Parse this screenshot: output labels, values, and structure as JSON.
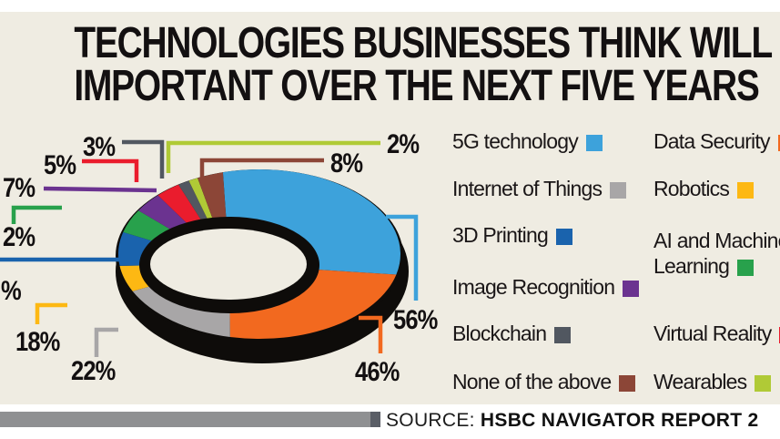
{
  "title": {
    "line1": "TECHNOLOGIES BUSINESSES THINK WILL BE",
    "line2": "IMPORTANT OVER THE NEXT FIVE YEARS"
  },
  "source": {
    "prefix": "SOURCE:",
    "report": "HSBC NAVIGATOR REPORT 2"
  },
  "colors": {
    "background": "#efece2",
    "outline_black": "#0e0c0a",
    "title_text": "#131011",
    "source_bar": "#8f9092",
    "source_bar_cap": "#5a5e66"
  },
  "chart_data": {
    "type": "pie",
    "subtype": "3d-donut",
    "title": "Technologies businesses think will be important over the next five years",
    "legend_position": "right",
    "note": "Multi-select survey; percentages exceed 100%. Angles estimated from pixels. The 3D Printing callout number is cropped at the image edge (only '%' visible).",
    "slices": [
      {
        "id": "5g",
        "label": "5G technology",
        "pct": 56,
        "callout": "56%",
        "color": "#3da2db",
        "angle": [
          -15,
          104
        ]
      },
      {
        "id": "data-security",
        "label": "Data Security",
        "pct": 46,
        "callout": "46%",
        "color": "#f2691f",
        "angle": [
          104,
          192
        ]
      },
      {
        "id": "iot",
        "label": "Internet of Things",
        "pct": 22,
        "callout": "22%",
        "color": "#a8a6a7",
        "angle": [
          192,
          244
        ]
      },
      {
        "id": "robotics",
        "label": "Robotics",
        "pct": 18,
        "callout": "18%",
        "color": "#fdb813",
        "angle": [
          244,
          262
        ]
      },
      {
        "id": "3d-printing",
        "label": "3D Printing",
        "pct": null,
        "callout": "%",
        "color": "#1a63ad",
        "angle": [
          262,
          285
        ]
      },
      {
        "id": "ai-ml",
        "label": "AI and Machine Learning",
        "pct": 2,
        "callout": "2%",
        "color": "#28a14c",
        "angle": [
          285,
          301
        ]
      },
      {
        "id": "image-recognition",
        "label": "Image Recognition",
        "pct": 7,
        "callout": "7%",
        "color": "#6b3390",
        "angle": [
          301,
          314
        ]
      },
      {
        "id": "virtual-reality",
        "label": "Virtual Reality",
        "pct": 5,
        "callout": "5%",
        "color": "#ea1c2d",
        "angle": [
          314,
          325
        ]
      },
      {
        "id": "blockchain",
        "label": "Blockchain",
        "pct": 3,
        "callout": "3%",
        "color": "#515760",
        "angle": [
          325,
          330
        ]
      },
      {
        "id": "wearables",
        "label": "Wearables",
        "pct": 2,
        "callout": "2%",
        "color": "#b0ca36",
        "angle": [
          330,
          334
        ]
      },
      {
        "id": "none",
        "label": "None of the above",
        "pct": 8,
        "callout": "8%",
        "color": "#8c4637",
        "angle": [
          334,
          345
        ]
      }
    ]
  },
  "legend": {
    "columns": [
      {
        "items": [
          {
            "slice": "5g",
            "lines": [
              "5G technology"
            ]
          },
          {
            "slice": "iot",
            "lines": [
              "Internet of Things"
            ]
          },
          {
            "slice": "3d-printing",
            "lines": [
              "3D Printing"
            ]
          },
          {
            "slice": "image-recognition",
            "lines": [
              "Image Recognition"
            ]
          },
          {
            "slice": "blockchain",
            "lines": [
              "Blockchain"
            ]
          },
          {
            "slice": "none",
            "lines": [
              "None of the above"
            ]
          }
        ]
      },
      {
        "items": [
          {
            "slice": "data-security",
            "lines": [
              "Data Security"
            ]
          },
          {
            "slice": "robotics",
            "lines": [
              "Robotics"
            ]
          },
          {
            "slice": "ai-ml",
            "lines": [
              "AI and Machine",
              "Learning"
            ]
          },
          {
            "slice": "virtual-reality",
            "lines": [
              "Virtual Reality"
            ]
          },
          {
            "slice": "wearables",
            "lines": [
              "Wearables"
            ]
          }
        ]
      }
    ]
  }
}
